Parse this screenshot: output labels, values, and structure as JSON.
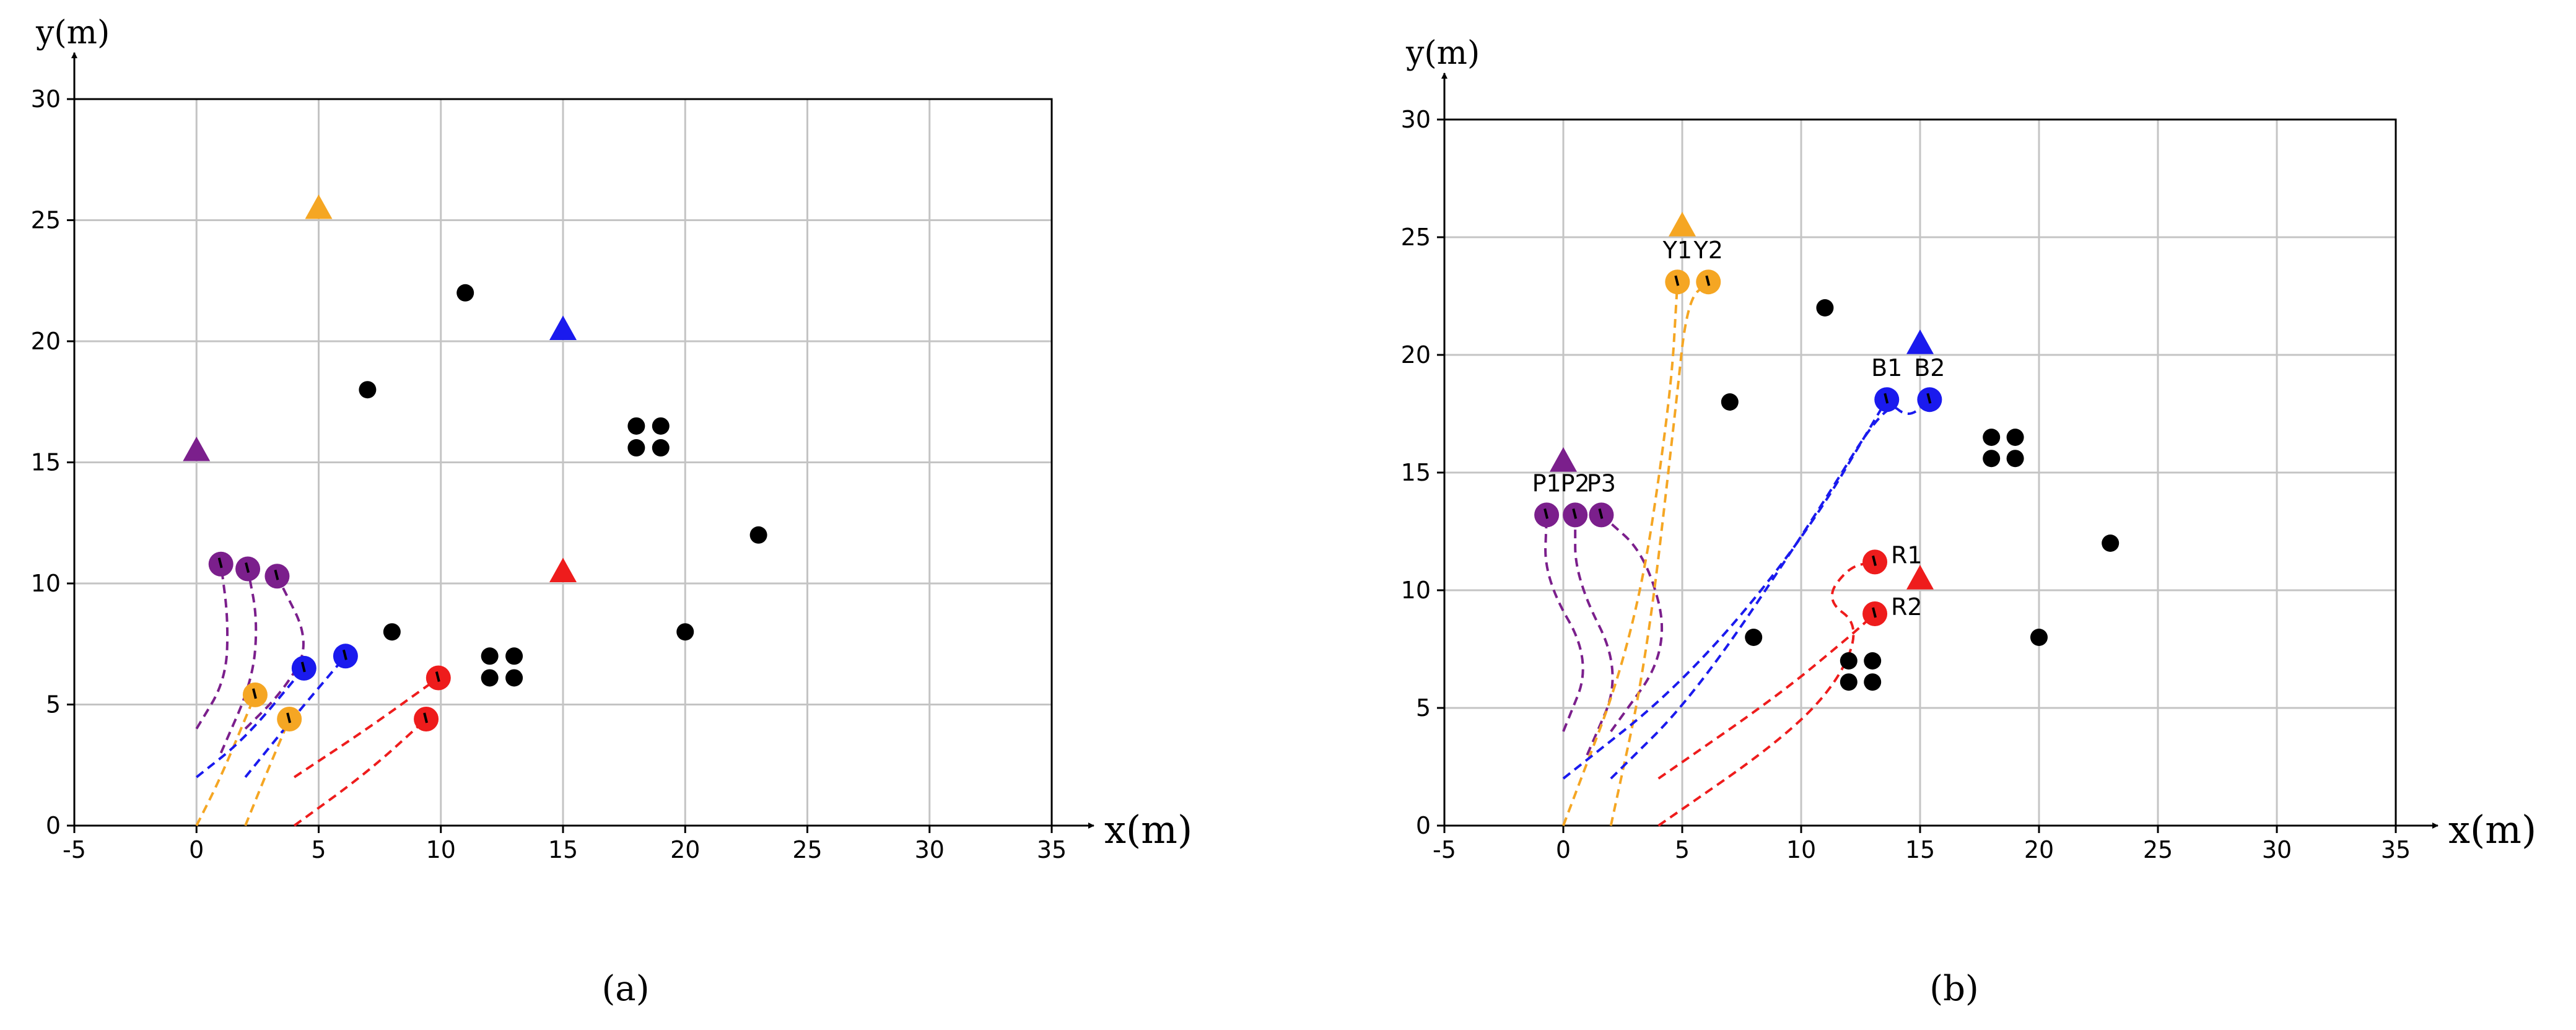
{
  "chart_data": [
    {
      "type": "scatter",
      "caption": "(a)",
      "caption_letter": "a",
      "xlabel": "x(m)",
      "ylabel": "y(m)",
      "xlim": [
        -5,
        35
      ],
      "ylim": [
        0,
        30
      ],
      "xticks": [
        -5,
        0,
        5,
        10,
        15,
        20,
        25,
        30,
        35
      ],
      "yticks": [
        0,
        5,
        10,
        15,
        20,
        25,
        30
      ],
      "grid": true,
      "colors": {
        "purple": "#7b1f8c",
        "orange": "#f5a623",
        "blue": "#1a1aee",
        "red": "#ee1c1c",
        "black": "#000000"
      },
      "obstacles": [
        [
          7,
          18
        ],
        [
          11,
          22
        ],
        [
          8,
          8
        ],
        [
          20,
          8
        ],
        [
          23,
          12
        ],
        [
          18,
          16.5
        ],
        [
          19,
          16.5
        ],
        [
          18,
          15.6
        ],
        [
          19,
          15.6
        ],
        [
          12,
          7
        ],
        [
          13,
          7
        ],
        [
          12,
          6.1
        ],
        [
          13,
          6.1
        ]
      ],
      "targets": [
        {
          "color": "orange",
          "x": 5,
          "y": 25.5
        },
        {
          "color": "blue",
          "x": 15,
          "y": 20.5
        },
        {
          "color": "purple",
          "x": 0,
          "y": 15.5
        },
        {
          "color": "red",
          "x": 15,
          "y": 10.5
        }
      ],
      "robots": [
        {
          "color": "purple",
          "x": 1.0,
          "y": 10.8,
          "label": ""
        },
        {
          "color": "purple",
          "x": 2.1,
          "y": 10.6,
          "label": ""
        },
        {
          "color": "purple",
          "x": 3.3,
          "y": 10.3,
          "label": ""
        },
        {
          "color": "orange",
          "x": 2.4,
          "y": 5.4,
          "label": ""
        },
        {
          "color": "orange",
          "x": 3.8,
          "y": 4.4,
          "label": ""
        },
        {
          "color": "blue",
          "x": 4.4,
          "y": 6.5,
          "label": ""
        },
        {
          "color": "blue",
          "x": 6.1,
          "y": 7.0,
          "label": ""
        },
        {
          "color": "red",
          "x": 9.9,
          "y": 6.1,
          "label": ""
        },
        {
          "color": "red",
          "x": 9.4,
          "y": 4.4,
          "label": ""
        }
      ],
      "paths": [
        {
          "color": "purple",
          "points": [
            [
              0,
              4
            ],
            [
              1.2,
              6.0
            ],
            [
              1.3,
              8.5
            ],
            [
              1.0,
              10.8
            ]
          ]
        },
        {
          "color": "purple",
          "points": [
            [
              1,
              3
            ],
            [
              2.3,
              6.0
            ],
            [
              2.5,
              8.5
            ],
            [
              2.1,
              10.6
            ]
          ]
        },
        {
          "color": "purple",
          "points": [
            [
              2,
              4
            ],
            [
              3.5,
              5.5
            ],
            [
              4.7,
              7.5
            ],
            [
              3.3,
              10.3
            ]
          ]
        },
        {
          "color": "orange",
          "points": [
            [
              0,
              0
            ],
            [
              1.0,
              2.0
            ],
            [
              2.4,
              5.4
            ]
          ]
        },
        {
          "color": "orange",
          "points": [
            [
              2,
              0
            ],
            [
              2.8,
              2.0
            ],
            [
              3.8,
              4.4
            ]
          ]
        },
        {
          "color": "blue",
          "points": [
            [
              0,
              2
            ],
            [
              2.0,
              3.6
            ],
            [
              4.4,
              6.5
            ]
          ]
        },
        {
          "color": "blue",
          "points": [
            [
              2,
              2
            ],
            [
              4.0,
              4.5
            ],
            [
              6.1,
              7.0
            ]
          ]
        },
        {
          "color": "red",
          "points": [
            [
              4,
              2
            ],
            [
              7.0,
              4.0
            ],
            [
              9.9,
              6.1
            ]
          ]
        },
        {
          "color": "red",
          "points": [
            [
              4,
              0
            ],
            [
              7.0,
              2.2
            ],
            [
              9.4,
              4.4
            ]
          ]
        }
      ]
    },
    {
      "type": "scatter",
      "caption": "(b)",
      "caption_letter": "b",
      "xlabel": "x(m)",
      "ylabel": "y(m)",
      "xlim": [
        -5,
        35
      ],
      "ylim": [
        0,
        30
      ],
      "xticks": [
        -5,
        0,
        5,
        10,
        15,
        20,
        25,
        30,
        35
      ],
      "yticks": [
        0,
        5,
        10,
        15,
        20,
        25,
        30
      ],
      "grid": true,
      "colors": {
        "purple": "#7b1f8c",
        "orange": "#f5a623",
        "blue": "#1a1aee",
        "red": "#ee1c1c",
        "black": "#000000"
      },
      "obstacles": [
        [
          7,
          18
        ],
        [
          11,
          22
        ],
        [
          8,
          8
        ],
        [
          20,
          8
        ],
        [
          23,
          12
        ],
        [
          18,
          16.5
        ],
        [
          19,
          16.5
        ],
        [
          18,
          15.6
        ],
        [
          19,
          15.6
        ],
        [
          12,
          7
        ],
        [
          13,
          7
        ],
        [
          12,
          6.1
        ],
        [
          13,
          6.1
        ]
      ],
      "targets": [
        {
          "color": "orange",
          "x": 5,
          "y": 25.5
        },
        {
          "color": "blue",
          "x": 15,
          "y": 20.5
        },
        {
          "color": "purple",
          "x": 0,
          "y": 15.5
        },
        {
          "color": "red",
          "x": 15,
          "y": 10.5
        }
      ],
      "robots": [
        {
          "color": "purple",
          "x": -0.7,
          "y": 13.2,
          "label": "P1"
        },
        {
          "color": "purple",
          "x": 0.5,
          "y": 13.2,
          "label": "P2"
        },
        {
          "color": "purple",
          "x": 1.6,
          "y": 13.2,
          "label": "P3"
        },
        {
          "color": "orange",
          "x": 4.8,
          "y": 23.1,
          "label": "Y1"
        },
        {
          "color": "orange",
          "x": 6.1,
          "y": 23.1,
          "label": "Y2"
        },
        {
          "color": "blue",
          "x": 13.6,
          "y": 18.1,
          "label": "B1"
        },
        {
          "color": "blue",
          "x": 15.4,
          "y": 18.1,
          "label": "B2"
        },
        {
          "color": "red",
          "x": 13.1,
          "y": 11.2,
          "label": "R1"
        },
        {
          "color": "red",
          "x": 13.1,
          "y": 9.0,
          "label": "R2"
        }
      ],
      "paths": [
        {
          "color": "purple",
          "points": [
            [
              0,
              4
            ],
            [
              1.2,
              7.0
            ],
            [
              -0.8,
              10.5
            ],
            [
              -0.7,
              13.2
            ]
          ]
        },
        {
          "color": "purple",
          "points": [
            [
              1,
              3
            ],
            [
              2.5,
              6.5
            ],
            [
              0.5,
              10.5
            ],
            [
              0.5,
              13.2
            ]
          ]
        },
        {
          "color": "purple",
          "points": [
            [
              2,
              4
            ],
            [
              4.5,
              7.5
            ],
            [
              3.5,
              11.5
            ],
            [
              1.6,
              13.2
            ]
          ]
        },
        {
          "color": "orange",
          "points": [
            [
              0,
              0
            ],
            [
              3.0,
              8.0
            ],
            [
              4.5,
              18.0
            ],
            [
              4.8,
              23.1
            ]
          ]
        },
        {
          "color": "orange",
          "points": [
            [
              2,
              0
            ],
            [
              3.5,
              7.0
            ],
            [
              4.7,
              17.5
            ],
            [
              5.2,
              22.3
            ],
            [
              6.1,
              23.1
            ]
          ]
        },
        {
          "color": "blue",
          "points": [
            [
              0,
              2
            ],
            [
              5.0,
              6.0
            ],
            [
              10.0,
              12.0
            ],
            [
              13.6,
              18.1
            ]
          ]
        },
        {
          "color": "blue",
          "points": [
            [
              2,
              2
            ],
            [
              5.5,
              5.5
            ],
            [
              10.5,
              13.0
            ],
            [
              13.6,
              18.1
            ],
            [
              14.5,
              17.3
            ],
            [
              15.4,
              18.1
            ]
          ]
        },
        {
          "color": "red",
          "points": [
            [
              4,
              2
            ],
            [
              9.0,
              5.5
            ],
            [
              12.0,
              8.0
            ],
            [
              13.1,
              9.0
            ]
          ]
        },
        {
          "color": "red",
          "points": [
            [
              4,
              0
            ],
            [
              9.0,
              3.5
            ],
            [
              11.5,
              6.0
            ],
            [
              12.5,
              8.5
            ],
            [
              11.0,
              9.6
            ],
            [
              12.0,
              11.0
            ],
            [
              13.1,
              11.2
            ]
          ]
        }
      ]
    }
  ]
}
